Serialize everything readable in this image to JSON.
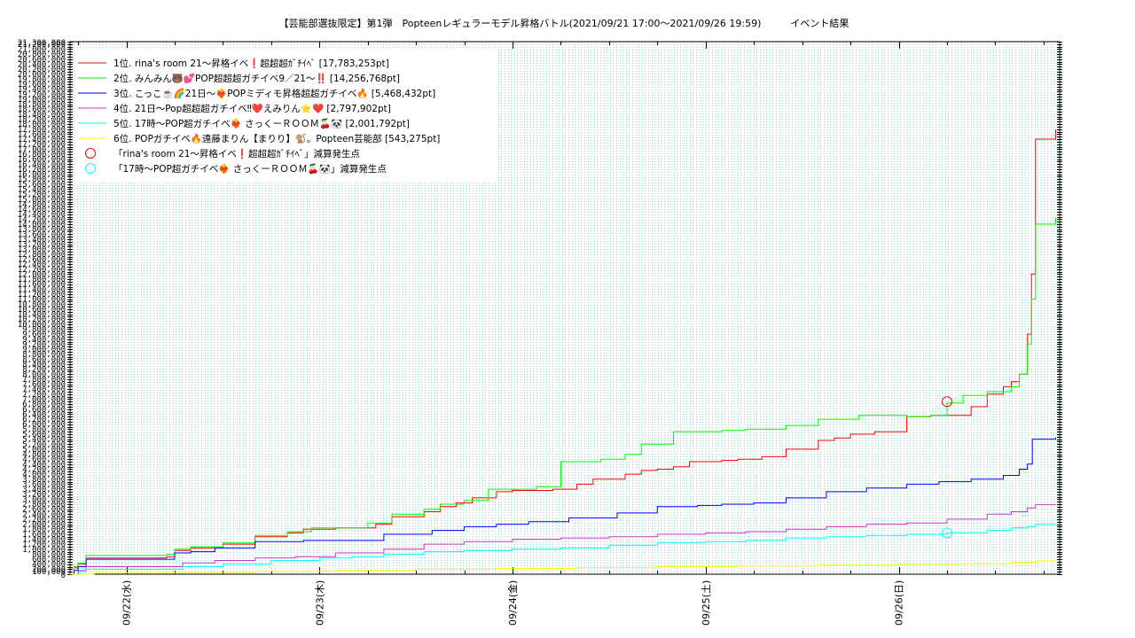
{
  "chart_data": {
    "type": "line",
    "title": "【芸能部選抜限定】第1弾　Popteenレギュラーモデル昇格バトル(2021/09/21 17:00〜2021/09/26 19:59)　　　イベント結果",
    "xlabel": "",
    "ylabel": "",
    "x_unit": "hours since 2021/09/21 00:00",
    "x_range": [
      17,
      140
    ],
    "ylim": [
      0,
      21300000
    ],
    "y_top_label": "21,300,000",
    "y_bottom_label": "100,000",
    "y_bottom_zero": "0",
    "x_ticks": [
      {
        "label": "09/22(水)",
        "x": 24
      },
      {
        "label": "09/23(木)",
        "x": 48
      },
      {
        "label": "09/24(金)",
        "x": 72
      },
      {
        "label": "09/25(土)",
        "x": 96
      },
      {
        "label": "09/26(日)",
        "x": 120
      }
    ],
    "grid": true,
    "legend_position": "top-left",
    "series": [
      {
        "name": "1位. rina's room 21〜昇格イベ❗️超超超ｶﾞﾁｲﾍﾞ [17,783,253pt]",
        "color": "#ff0000",
        "points": [
          [
            17,
            0
          ],
          [
            17.5,
            250000
          ],
          [
            18,
            400000
          ],
          [
            19,
            650000
          ],
          [
            29,
            700000
          ],
          [
            30,
            950000
          ],
          [
            32,
            1050000
          ],
          [
            36,
            1200000
          ],
          [
            40,
            1500000
          ],
          [
            44,
            1650000
          ],
          [
            46,
            1800000
          ],
          [
            50,
            1850000
          ],
          [
            55,
            2000000
          ],
          [
            57,
            2300000
          ],
          [
            61,
            2500000
          ],
          [
            63,
            2700000
          ],
          [
            65,
            2850000
          ],
          [
            67,
            3050000
          ],
          [
            70,
            3300000
          ],
          [
            72,
            3350000
          ],
          [
            77,
            3400000
          ],
          [
            80,
            3600000
          ],
          [
            82,
            3800000
          ],
          [
            86,
            4000000
          ],
          [
            88,
            4150000
          ],
          [
            90,
            4200000
          ],
          [
            92,
            4300000
          ],
          [
            94,
            4500000
          ],
          [
            98,
            4550000
          ],
          [
            100,
            4600000
          ],
          [
            103,
            4700000
          ],
          [
            106,
            5000000
          ],
          [
            110,
            5350000
          ],
          [
            112,
            5450000
          ],
          [
            114,
            5600000
          ],
          [
            117,
            5700000
          ],
          [
            121,
            6300000
          ],
          [
            124,
            6350000
          ],
          [
            129,
            6700000
          ],
          [
            131,
            7200000
          ],
          [
            133,
            7500000
          ],
          [
            134,
            7700000
          ],
          [
            135,
            8000000
          ],
          [
            136,
            9600000
          ],
          [
            136.5,
            12000000
          ],
          [
            137,
            17400000
          ],
          [
            139.5,
            17783253
          ]
        ]
      },
      {
        "name": "2位. みんみん🐻💕POP超超超ガチイベ9／21〜‼️ [14,256,768pt]",
        "color": "#00ff00",
        "points": [
          [
            17,
            0
          ],
          [
            17.5,
            300000
          ],
          [
            18,
            450000
          ],
          [
            19,
            750000
          ],
          [
            29,
            800000
          ],
          [
            30,
            1000000
          ],
          [
            32,
            1100000
          ],
          [
            36,
            1250000
          ],
          [
            40,
            1550000
          ],
          [
            44,
            1700000
          ],
          [
            47,
            1850000
          ],
          [
            50,
            1850000
          ],
          [
            54,
            2050000
          ],
          [
            57,
            2400000
          ],
          [
            61,
            2600000
          ],
          [
            63,
            2800000
          ],
          [
            66,
            2950000
          ],
          [
            69,
            3400000
          ],
          [
            75,
            3500000
          ],
          [
            78,
            4500000
          ],
          [
            83,
            4600000
          ],
          [
            86,
            4800000
          ],
          [
            88,
            5200000
          ],
          [
            92,
            5700000
          ],
          [
            98,
            5750000
          ],
          [
            101,
            5800000
          ],
          [
            106,
            5950000
          ],
          [
            110,
            6200000
          ],
          [
            115,
            6350000
          ],
          [
            121,
            6300000
          ],
          [
            124,
            6350000
          ],
          [
            126,
            6850000
          ],
          [
            128,
            7150000
          ],
          [
            131,
            7300000
          ],
          [
            134,
            7500000
          ],
          [
            135,
            8000000
          ],
          [
            136,
            9200000
          ],
          [
            136.5,
            11000000
          ],
          [
            137,
            14000000
          ],
          [
            139.5,
            14256768
          ]
        ]
      },
      {
        "name": "3位. こっこ☕️🌈21日〜❤️‍🔥POPミディモ昇格超超ガチイベ🔥 [5,468,432pt]",
        "color": "#0000ff",
        "points": [
          [
            17,
            0
          ],
          [
            17.5,
            150000
          ],
          [
            18,
            300000
          ],
          [
            19,
            600000
          ],
          [
            29,
            600000
          ],
          [
            30,
            850000
          ],
          [
            32,
            900000
          ],
          [
            35,
            1050000
          ],
          [
            40,
            1300000
          ],
          [
            46,
            1350000
          ],
          [
            50,
            1350000
          ],
          [
            56,
            1600000
          ],
          [
            62,
            1750000
          ],
          [
            66,
            1900000
          ],
          [
            70,
            2000000
          ],
          [
            74,
            2100000
          ],
          [
            79,
            2250000
          ],
          [
            85,
            2450000
          ],
          [
            90,
            2700000
          ],
          [
            95,
            2750000
          ],
          [
            98,
            2800000
          ],
          [
            102,
            2850000
          ],
          [
            106,
            3050000
          ],
          [
            111,
            3300000
          ],
          [
            116,
            3450000
          ],
          [
            121,
            3600000
          ],
          [
            125,
            3700000
          ],
          [
            129,
            3800000
          ],
          [
            133,
            3950000
          ],
          [
            135,
            4200000
          ],
          [
            136,
            4400000
          ],
          [
            136.6,
            5400000
          ],
          [
            139.5,
            5468432
          ]
        ]
      },
      {
        "name": "4位. 21日〜Pop超超超ガチイベ‼︎❤️えみりん⭐️❤️ [2,797,902pt]",
        "color": "#cc33cc",
        "points": [
          [
            17,
            0
          ],
          [
            18,
            150000
          ],
          [
            19,
            300000
          ],
          [
            29,
            300000
          ],
          [
            31,
            450000
          ],
          [
            35,
            550000
          ],
          [
            40,
            650000
          ],
          [
            45,
            700000
          ],
          [
            50,
            850000
          ],
          [
            56,
            1000000
          ],
          [
            61,
            1200000
          ],
          [
            66,
            1300000
          ],
          [
            72,
            1400000
          ],
          [
            78,
            1450000
          ],
          [
            84,
            1500000
          ],
          [
            90,
            1600000
          ],
          [
            96,
            1650000
          ],
          [
            101,
            1700000
          ],
          [
            106,
            1800000
          ],
          [
            111,
            1900000
          ],
          [
            116,
            2000000
          ],
          [
            121,
            2050000
          ],
          [
            126,
            2200000
          ],
          [
            131,
            2400000
          ],
          [
            134,
            2500000
          ],
          [
            136,
            2650000
          ],
          [
            137,
            2780000
          ],
          [
            139.5,
            2797902
          ]
        ]
      },
      {
        "name": "5位. 17時〜POP超ガチイベ❤️‍🔥 さっくーＲＯＯＭ🍒🐼 [2,001,792pt]",
        "color": "#00ffff",
        "points": [
          [
            17,
            0
          ],
          [
            18,
            100000
          ],
          [
            19,
            200000
          ],
          [
            29,
            200000
          ],
          [
            31,
            300000
          ],
          [
            36,
            400000
          ],
          [
            42,
            550000
          ],
          [
            48,
            650000
          ],
          [
            52,
            700000
          ],
          [
            56,
            800000
          ],
          [
            61,
            900000
          ],
          [
            66,
            950000
          ],
          [
            72,
            1000000
          ],
          [
            78,
            1050000
          ],
          [
            84,
            1150000
          ],
          [
            90,
            1250000
          ],
          [
            96,
            1300000
          ],
          [
            101,
            1350000
          ],
          [
            106,
            1450000
          ],
          [
            111,
            1500000
          ],
          [
            116,
            1550000
          ],
          [
            121,
            1600000
          ],
          [
            126,
            1650000
          ],
          [
            131,
            1750000
          ],
          [
            134,
            1850000
          ],
          [
            136,
            1900000
          ],
          [
            137,
            1990000
          ],
          [
            139.5,
            2001792
          ]
        ]
      },
      {
        "name": "6位. POPガチイベ🔥遠藤まりん【まりり】🐒。Popteen芸能部 [543,275pt]",
        "color": "#ffff00",
        "points": [
          [
            17,
            0
          ],
          [
            20,
            50000
          ],
          [
            30,
            70000
          ],
          [
            40,
            120000
          ],
          [
            50,
            150000
          ],
          [
            60,
            200000
          ],
          [
            70,
            230000
          ],
          [
            80,
            270000
          ],
          [
            90,
            300000
          ],
          [
            100,
            330000
          ],
          [
            110,
            360000
          ],
          [
            120,
            390000
          ],
          [
            128,
            430000
          ],
          [
            134,
            480000
          ],
          [
            137,
            530000
          ],
          [
            139.5,
            543275
          ]
        ]
      }
    ],
    "annotations": [
      {
        "label": "「rina's room 21〜昇格イベ❗️超超超ｶﾞﾁｲﾍﾞ」減算発生点",
        "color": "#ff0000",
        "x": 126,
        "y": 6900000
      },
      {
        "label": "「17時〜POP超ガチイベ❤️‍🔥 さっくーＲＯＯＭ🍒🐼」減算発生点",
        "color": "#00ffff",
        "x": 126,
        "y": 1650000
      }
    ]
  }
}
